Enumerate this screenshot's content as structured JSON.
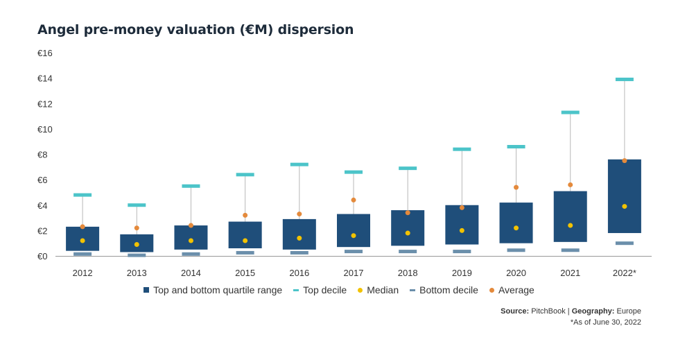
{
  "title": "Angel pre-money valuation (€M) dispersion",
  "colors": {
    "box": "#1f4e7a",
    "top_decile": "#4cc4c9",
    "bottom_decile": "#6b8fab",
    "median": "#f2c200",
    "average": "#e48a3c",
    "whisker": "#b8b8b8",
    "axis": "#999999"
  },
  "legend": [
    {
      "label": "Top and bottom quartile range",
      "icon": "square-icon",
      "color": "#1f4e7a"
    },
    {
      "label": "Top decile",
      "icon": "dash-icon",
      "color": "#4cc4c9"
    },
    {
      "label": "Median",
      "icon": "dot-icon",
      "color": "#f2c200"
    },
    {
      "label": "Bottom decile",
      "icon": "dash-icon",
      "color": "#6b8fab"
    },
    {
      "label": "Average",
      "icon": "dot-icon",
      "color": "#e48a3c"
    }
  ],
  "footer": {
    "source_label": "Source:",
    "source_value": "PitchBook",
    "separator": "|",
    "geo_label": "Geography:",
    "geo_value": "Europe",
    "note": "*As of June 30, 2022"
  },
  "chart_data": {
    "type": "box",
    "title": "Angel pre-money valuation (€M) dispersion",
    "ylim": [
      0,
      16
    ],
    "yticks": [
      "€0",
      "€2",
      "€4",
      "€6",
      "€8",
      "€10",
      "€12",
      "€14",
      "€16"
    ],
    "ytick_values": [
      0,
      2,
      4,
      6,
      8,
      10,
      12,
      14,
      16
    ],
    "categories": [
      "2012",
      "2013",
      "2014",
      "2015",
      "2016",
      "2017",
      "2018",
      "2019",
      "2020",
      "2021",
      "2022*"
    ],
    "top_decile": [
      4.8,
      4.0,
      5.5,
      6.4,
      7.2,
      6.6,
      6.9,
      8.4,
      8.6,
      11.3,
      13.9
    ],
    "q3": [
      2.3,
      1.7,
      2.4,
      2.7,
      2.9,
      3.3,
      3.6,
      4.0,
      4.2,
      5.1,
      7.6
    ],
    "median": [
      1.2,
      0.9,
      1.2,
      1.2,
      1.4,
      1.6,
      1.8,
      2.0,
      2.2,
      2.4,
      3.9
    ],
    "q1": [
      0.4,
      0.3,
      0.5,
      0.6,
      0.5,
      0.7,
      0.8,
      0.9,
      1.0,
      1.1,
      1.8
    ],
    "bottom_decile": [
      0.15,
      0.05,
      0.15,
      0.25,
      0.25,
      0.35,
      0.35,
      0.35,
      0.45,
      0.45,
      1.0
    ],
    "average": [
      2.3,
      2.2,
      2.4,
      3.2,
      3.3,
      4.4,
      3.4,
      3.8,
      5.4,
      5.6,
      7.5
    ],
    "grid": false,
    "legend_position": "bottom"
  }
}
